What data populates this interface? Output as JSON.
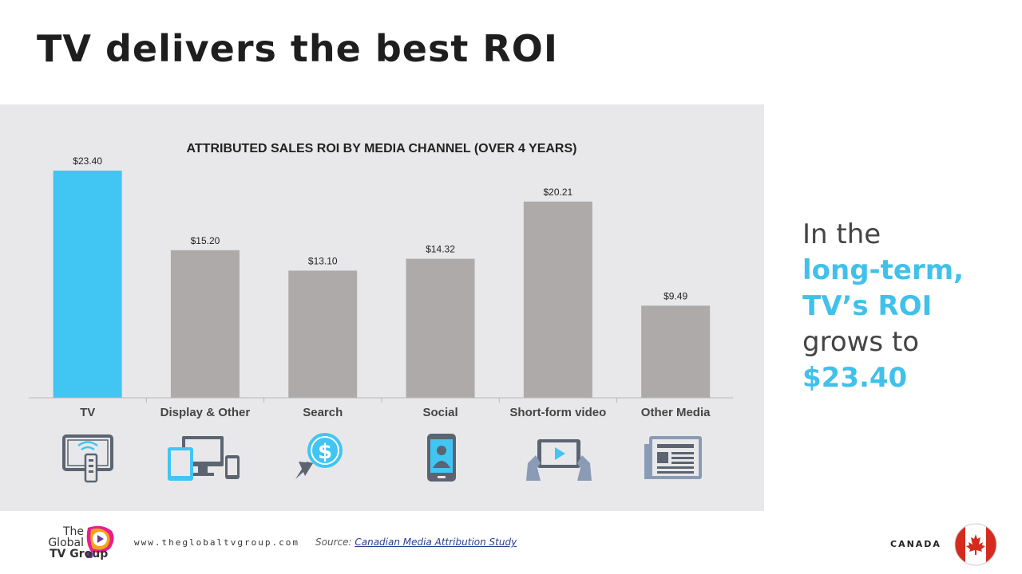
{
  "slide": {
    "title": "TV delivers the best ROI"
  },
  "chart_data": {
    "type": "bar",
    "title": "ATTRIBUTED SALES ROI BY MEDIA CHANNEL (OVER 4 YEARS)",
    "categories": [
      "TV",
      "Display & Other",
      "Search",
      "Social",
      "Short-form video",
      "Other Media"
    ],
    "values": [
      23.4,
      15.2,
      13.1,
      14.32,
      20.21,
      9.49
    ],
    "value_labels": [
      "$23.40",
      "$15.20",
      "$13.10",
      "$14.32",
      "$20.21",
      "$9.49"
    ],
    "highlight_index": 0,
    "colors": {
      "highlight": "#41c5f2",
      "default": "#aeaaa9"
    },
    "ylim": [
      0,
      23.4
    ],
    "xlabel": "",
    "ylabel": ""
  },
  "icons": [
    "smart-tv-remote-icon",
    "devices-icon",
    "search-dollar-icon",
    "smartphone-user-icon",
    "tablet-video-icon",
    "newspaper-icon"
  ],
  "callout": {
    "line1": "In the",
    "line2": "long-term,",
    "line3": "TV’s ROI",
    "line4": "grows to",
    "line5": "$23.40"
  },
  "footer": {
    "logo_line1": "The",
    "logo_line2": "Global",
    "logo_line3": "TV Group",
    "website": "www.theglobaltvgroup.com",
    "source_label": "Source:",
    "source_link": "Canadian Media Attribution Study",
    "country": "CANADA"
  }
}
